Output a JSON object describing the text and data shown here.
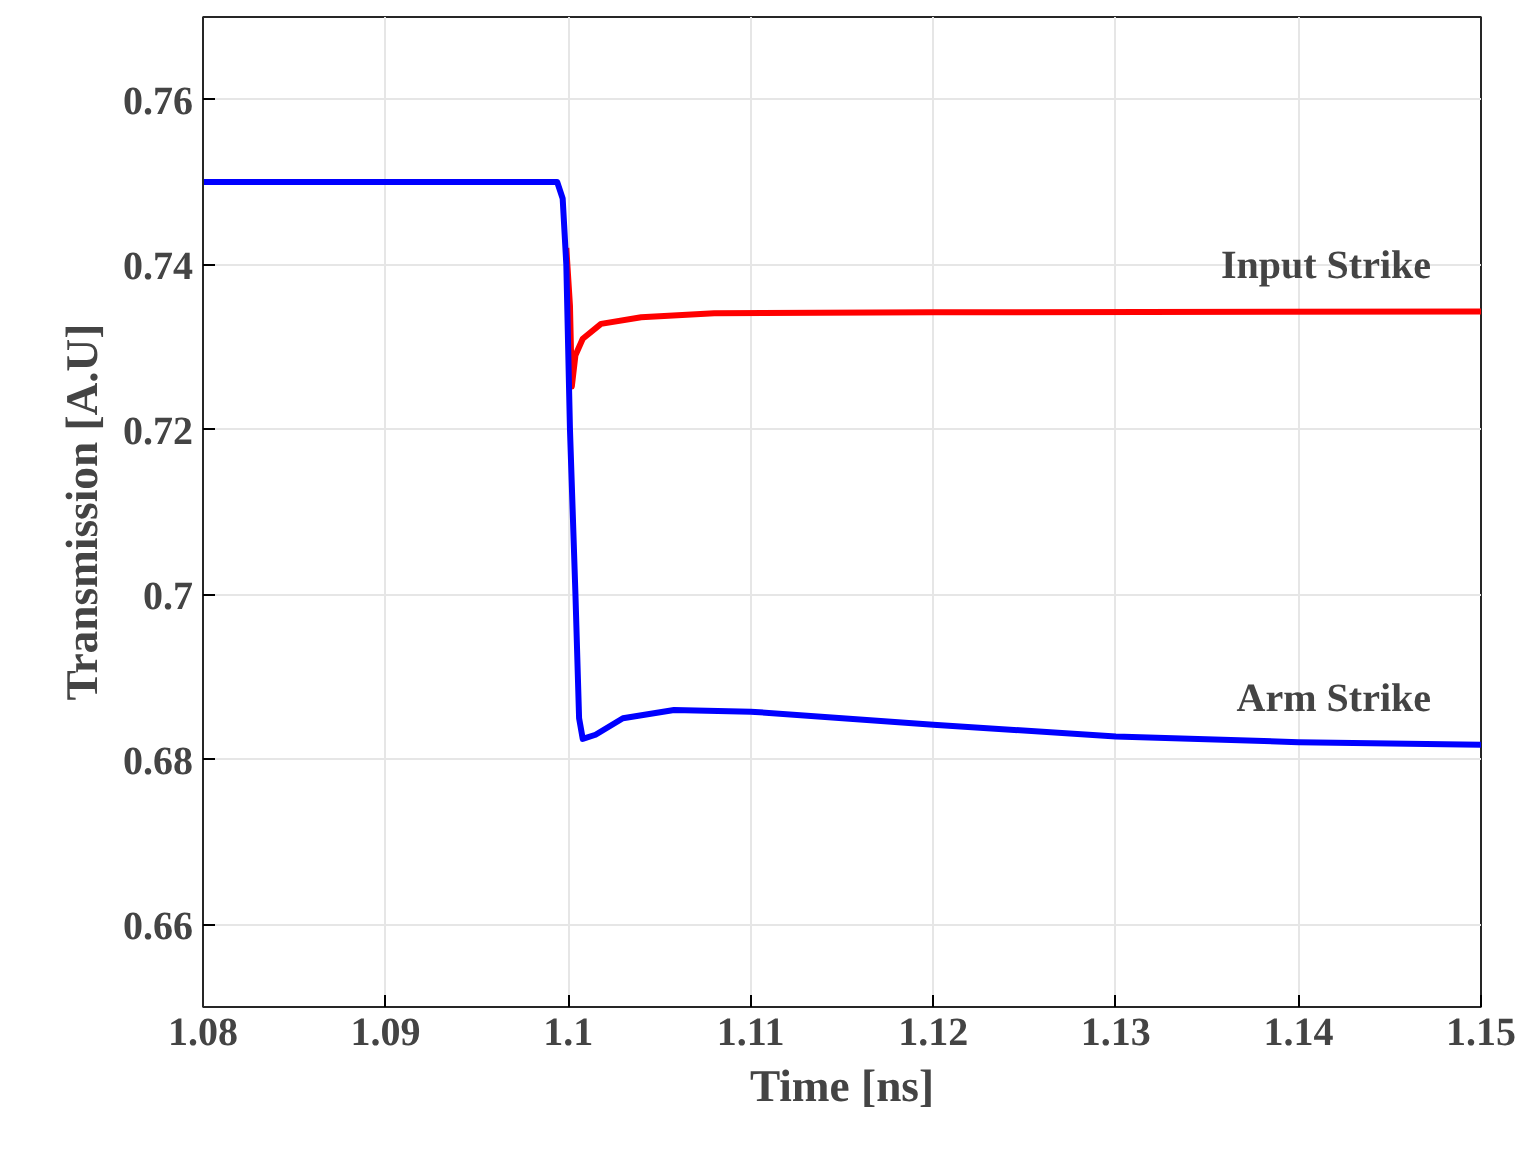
{
  "chart_data": {
    "type": "line",
    "xlabel": "Time [ns]",
    "ylabel": "Transmission [A.U]",
    "xlim": [
      1.08,
      1.15
    ],
    "ylim": [
      0.65,
      0.77
    ],
    "xticks": [
      1.08,
      1.09,
      1.1,
      1.11,
      1.12,
      1.13,
      1.14,
      1.15
    ],
    "yticks": [
      0.66,
      0.68,
      0.7,
      0.72,
      0.74,
      0.76
    ],
    "grid": true,
    "legend": false,
    "marker": "none",
    "line_style": "solid",
    "series": [
      {
        "name": "Input Strike",
        "color": "#ff0000",
        "x": [
          1.0999,
          1.1001,
          1.1002,
          1.1004,
          1.1008,
          1.1018,
          1.104,
          1.108,
          1.12,
          1.15
        ],
        "values": [
          0.742,
          0.735,
          0.7252,
          0.729,
          0.731,
          0.7328,
          0.7336,
          0.7341,
          0.7342,
          0.7343
        ]
      },
      {
        "name": "Arm Strike",
        "color": "#0000ff",
        "x": [
          1.08,
          1.0994,
          1.0997,
          1.0999,
          1.1001,
          1.1004,
          1.1006,
          1.1008,
          1.1015,
          1.103,
          1.1058,
          1.11,
          1.12,
          1.13,
          1.14,
          1.15
        ],
        "values": [
          0.75,
          0.75,
          0.748,
          0.74,
          0.72,
          0.7,
          0.685,
          0.6825,
          0.683,
          0.685,
          0.686,
          0.6858,
          0.6842,
          0.6828,
          0.6821,
          0.6818
        ]
      }
    ]
  }
}
